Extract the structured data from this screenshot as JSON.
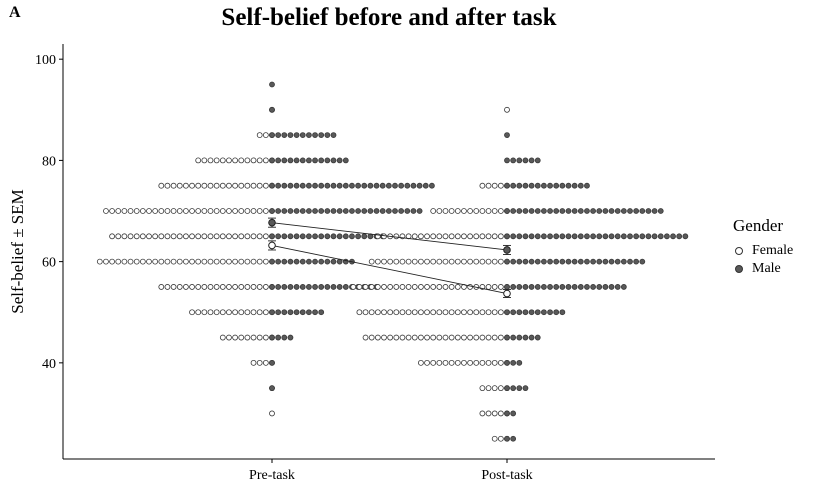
{
  "panel_letter": "A",
  "chart_data": {
    "type": "scatter",
    "title": "Self-belief before and after task",
    "xlabel": "",
    "ylabel": "Self-belief ± SEM",
    "categories": [
      "Pre-task",
      "Post-task"
    ],
    "ylim": [
      21,
      103
    ],
    "yticks": [
      40,
      60,
      80,
      100
    ],
    "grid": false,
    "legend": {
      "title": "Gender",
      "placement": "right"
    },
    "series": [
      {
        "name": "Female",
        "marker_fill": "#ffffff",
        "mean": [
          63.2,
          53.7
        ],
        "sem": [
          0.9,
          0.8
        ],
        "dot_rows": {
          "Pre-task": [
            [
              90,
              1
            ],
            [
              85,
              3
            ],
            [
              80,
              13
            ],
            [
              75,
              19
            ],
            [
              70,
              28
            ],
            [
              65,
              27
            ],
            [
              60,
              29
            ],
            [
              55,
              19
            ],
            [
              50,
              14
            ],
            [
              45,
              9
            ],
            [
              40,
              4
            ],
            [
              35,
              1
            ],
            [
              30,
              1
            ]
          ],
          "Post-task": [
            [
              90,
              1
            ],
            [
              75,
              5
            ],
            [
              70,
              13
            ],
            [
              65,
              22
            ],
            [
              60,
              23
            ],
            [
              55,
              26
            ],
            [
              50,
              25
            ],
            [
              45,
              24
            ],
            [
              40,
              15
            ],
            [
              35,
              5
            ],
            [
              30,
              5
            ],
            [
              25,
              3
            ]
          ]
        }
      },
      {
        "name": "Male",
        "marker_fill": "#595959",
        "mean": [
          67.7,
          62.3
        ],
        "sem": [
          0.9,
          0.9
        ],
        "dot_rows": {
          "Pre-task": [
            [
              95,
              1
            ],
            [
              90,
              1
            ],
            [
              85,
              11
            ],
            [
              80,
              13
            ],
            [
              75,
              27
            ],
            [
              70,
              25
            ],
            [
              65,
              19
            ],
            [
              60,
              14
            ],
            [
              55,
              18
            ],
            [
              50,
              9
            ],
            [
              45,
              4
            ],
            [
              40,
              1
            ],
            [
              35,
              1
            ]
          ],
          "Post-task": [
            [
              85,
              1
            ],
            [
              80,
              6
            ],
            [
              75,
              14
            ],
            [
              70,
              26
            ],
            [
              65,
              30
            ],
            [
              60,
              23
            ],
            [
              55,
              20
            ],
            [
              50,
              10
            ],
            [
              45,
              6
            ],
            [
              40,
              3
            ],
            [
              35,
              4
            ],
            [
              30,
              2
            ],
            [
              25,
              2
            ]
          ]
        }
      }
    ]
  }
}
